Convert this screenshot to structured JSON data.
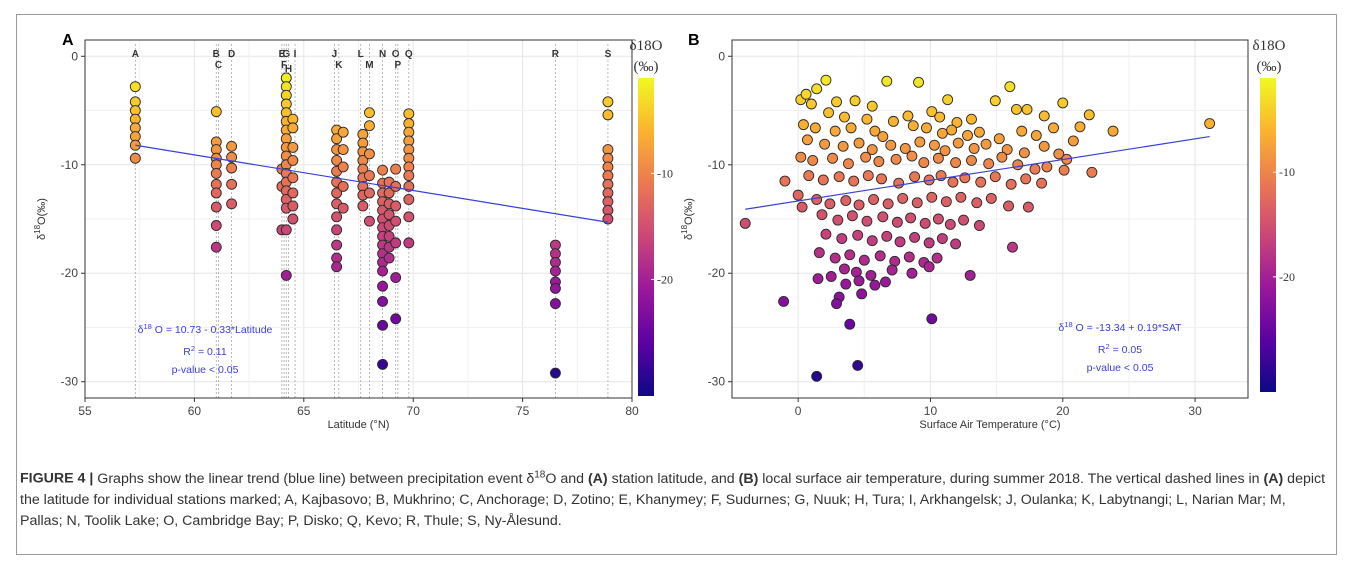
{
  "figure": {
    "caption_label": "FIGURE 4 |",
    "caption_parts": [
      {
        "t": "Graphs show the linear trend (blue line) between precipitation event δ",
        "b": false
      },
      {
        "t": "18",
        "b": false,
        "sup": true
      },
      {
        "t": "O and ",
        "b": false
      },
      {
        "t": "(A)",
        "b": true
      },
      {
        "t": " station latitude, and ",
        "b": false
      },
      {
        "t": "(B)",
        "b": true
      },
      {
        "t": " local surface air temperature, during summer 2018. The vertical dashed lines in ",
        "b": false
      },
      {
        "t": "(A)",
        "b": true
      },
      {
        "t": " depict the latitude for individual stations marked; A, Kajbasovo; B, Mukhrino; C, Anchorage; D, Zotino; E, Khanymey; F, Sudurnes; G, Nuuk; H, Tura; I, Arkhangelsk; J, Oulanka; K, Labytnangi; L, Narian Mar; M, Pallas; N, Toolik Lake; O, Cambridge Bay; P, Disko; Q, Kevo; R, Thule; S, Ny-Ålesund.",
        "b": false
      }
    ]
  },
  "colors": {
    "trend": "#3a3fd6",
    "grid": "#e6e6e6",
    "panel_border": "#333333",
    "colormap": [
      "#0d0887",
      "#5b02a3",
      "#9a179b",
      "#cb4678",
      "#eb7852",
      "#fbb32f",
      "#f0f921"
    ]
  },
  "chart_data": [
    {
      "panel": "A",
      "type": "scatter",
      "xlabel": "Latitude (°N)",
      "ylabel_main": "δ",
      "ylabel_sup": "18",
      "ylabel_rest": "O(‰)",
      "xlim": [
        55,
        80
      ],
      "ylim": [
        -31.5,
        1.5
      ],
      "xticks": [
        55,
        60,
        65,
        70,
        75,
        80
      ],
      "yticks": [
        0,
        -10,
        -20,
        -30
      ],
      "colorbar": {
        "title": "δ18O",
        "unit": "(‰)",
        "range": [
          -31,
          -1
        ],
        "ticks": [
          -10,
          -20
        ]
      },
      "stations": [
        {
          "name": "A",
          "lat": 57.3,
          "row": 1
        },
        {
          "name": "B",
          "lat": 61.0,
          "row": 1
        },
        {
          "name": "C",
          "lat": 61.1,
          "row": 2
        },
        {
          "name": "D",
          "lat": 61.7,
          "row": 1
        },
        {
          "name": "E",
          "lat": 64.0,
          "row": 1
        },
        {
          "name": "F",
          "lat": 64.1,
          "row": 2
        },
        {
          "name": "G",
          "lat": 64.2,
          "row": 1
        },
        {
          "name": "H",
          "lat": 64.3,
          "row": 2.5
        },
        {
          "name": "I",
          "lat": 64.6,
          "row": 1
        },
        {
          "name": "J",
          "lat": 66.4,
          "row": 1
        },
        {
          "name": "K",
          "lat": 66.6,
          "row": 2
        },
        {
          "name": "L",
          "lat": 67.6,
          "row": 1
        },
        {
          "name": "M",
          "lat": 68.0,
          "row": 2
        },
        {
          "name": "N",
          "lat": 68.6,
          "row": 1
        },
        {
          "name": "O",
          "lat": 69.2,
          "row": 1
        },
        {
          "name": "P",
          "lat": 69.3,
          "row": 2
        },
        {
          "name": "Q",
          "lat": 69.8,
          "row": 1
        },
        {
          "name": "R",
          "lat": 76.5,
          "row": 1
        },
        {
          "name": "S",
          "lat": 78.9,
          "row": 1
        }
      ],
      "groups": [
        {
          "x": 57.3,
          "y": [
            -2.8,
            -4.2,
            -5.0,
            -5.8,
            -6.6,
            -7.4,
            -8.2,
            -9.4
          ]
        },
        {
          "x": 61.0,
          "y": [
            -5.1,
            -7.9,
            -8.6,
            -9.4,
            -10.0,
            -10.8,
            -11.8,
            -12.6,
            -13.9,
            -15.6,
            -17.6
          ]
        },
        {
          "x": 61.7,
          "y": [
            -8.3,
            -9.3,
            -10.3,
            -11.8,
            -13.6
          ]
        },
        {
          "x": 64.0,
          "y": [
            -10.4,
            -12.0,
            -16.0
          ]
        },
        {
          "x": 64.2,
          "y": [
            -2.0,
            -2.8,
            -3.6,
            -4.4,
            -5.2,
            -6.0,
            -6.8,
            -7.6,
            -8.4,
            -9.2,
            -10.0,
            -10.8,
            -11.6,
            -12.4,
            -13.2,
            -14.0,
            -16.0,
            -20.2
          ]
        },
        {
          "x": 64.5,
          "y": [
            -5.8,
            -6.6,
            -8.4,
            -9.6,
            -11.2,
            -12.6,
            -13.8,
            -15.0
          ]
        },
        {
          "x": 66.5,
          "y": [
            -6.8,
            -7.6,
            -8.6,
            -9.6,
            -10.6,
            -11.6,
            -12.6,
            -13.6,
            -14.8,
            -16.0,
            -17.4,
            -18.6,
            -19.4
          ]
        },
        {
          "x": 66.8,
          "y": [
            -7.0,
            -8.6,
            -10.2,
            -12.0,
            -14.0
          ]
        },
        {
          "x": 67.7,
          "y": [
            -7.2,
            -8.0,
            -8.8,
            -9.6,
            -10.4,
            -11.2,
            -12.0,
            -12.8,
            -13.8
          ]
        },
        {
          "x": 68.0,
          "y": [
            -5.2,
            -6.4,
            -9.0,
            -11.0,
            -12.6,
            -15.2
          ]
        },
        {
          "x": 68.6,
          "y": [
            -10.5,
            -11.7,
            -12.6,
            -13.4,
            -14.2,
            -15.0,
            -15.8,
            -16.6,
            -17.4,
            -18.2,
            -19.0,
            -19.8,
            -21.2,
            -22.6,
            -24.8,
            -28.4
          ]
        },
        {
          "x": 68.9,
          "y": [
            -11.6,
            -12.6,
            -13.6,
            -14.6,
            -15.6,
            -16.6,
            -17.6,
            -18.6
          ]
        },
        {
          "x": 69.2,
          "y": [
            -10.4,
            -12.0,
            -13.8,
            -15.2,
            -17.2,
            -20.4,
            -24.2
          ]
        },
        {
          "x": 69.8,
          "y": [
            -5.3,
            -6.2,
            -7.0,
            -7.8,
            -8.6,
            -9.4,
            -10.2,
            -11.0,
            -12.0,
            -13.2,
            -14.8,
            -17.2
          ]
        },
        {
          "x": 76.5,
          "y": [
            -17.4,
            -18.2,
            -19.0,
            -19.8,
            -20.8,
            -21.4,
            -22.8,
            -29.2
          ]
        },
        {
          "x": 78.9,
          "y": [
            -4.2,
            -5.4,
            -8.6,
            -9.4,
            -10.2,
            -11.0,
            -11.8,
            -12.6,
            -13.4,
            -14.2,
            -15.0
          ]
        }
      ],
      "trend": {
        "x": [
          57.3,
          78.9
        ],
        "y": [
          -8.2,
          -15.3
        ]
      },
      "annotations": {
        "eq_pre": "δ",
        "eq_sup": "18",
        "eq_post": " O = 10.73 - 0.33*Latitude",
        "r2_main": "R",
        "r2_sup": "2",
        "r2_post": " = 0.11",
        "pval": "p-value < 0.05"
      }
    },
    {
      "panel": "B",
      "type": "scatter",
      "xlabel": "Surface Air Temperature (°C)",
      "ylabel_main": "δ",
      "ylabel_sup": "18",
      "ylabel_rest": "O(‰)",
      "xlim": [
        -5,
        34
      ],
      "ylim": [
        -31.5,
        1.5
      ],
      "xticks": [
        0,
        10,
        20,
        30
      ],
      "yticks": [
        0,
        -10,
        -20,
        -30
      ],
      "colorbar": {
        "title": "δ18O",
        "unit": "(‰)",
        "range": [
          -31,
          -1
        ],
        "ticks": [
          -10,
          -20
        ]
      },
      "points": [
        [
          1.4,
          -3.0
        ],
        [
          2.1,
          -2.2
        ],
        [
          6.7,
          -2.3
        ],
        [
          9.1,
          -2.4
        ],
        [
          16.0,
          -2.8
        ],
        [
          0.2,
          -4.0
        ],
        [
          0.6,
          -3.5
        ],
        [
          1.0,
          -4.4
        ],
        [
          2.9,
          -4.2
        ],
        [
          4.3,
          -4.1
        ],
        [
          5.6,
          -4.6
        ],
        [
          11.3,
          -4.0
        ],
        [
          14.9,
          -4.1
        ],
        [
          17.3,
          -4.9
        ],
        [
          20.0,
          -4.3
        ],
        [
          22.0,
          -5.4
        ],
        [
          31.1,
          -6.2
        ],
        [
          2.3,
          -5.2
        ],
        [
          3.5,
          -5.6
        ],
        [
          5.2,
          -5.8
        ],
        [
          7.2,
          -6.0
        ],
        [
          8.3,
          -5.5
        ],
        [
          10.1,
          -5.1
        ],
        [
          10.7,
          -5.6
        ],
        [
          12.0,
          -6.1
        ],
        [
          13.1,
          -5.8
        ],
        [
          16.5,
          -4.9
        ],
        [
          18.6,
          -5.5
        ],
        [
          21.3,
          -6.5
        ],
        [
          23.8,
          -6.9
        ],
        [
          0.4,
          -6.3
        ],
        [
          1.3,
          -6.6
        ],
        [
          2.8,
          -6.9
        ],
        [
          4.0,
          -6.6
        ],
        [
          5.8,
          -6.9
        ],
        [
          6.4,
          -7.4
        ],
        [
          8.7,
          -6.4
        ],
        [
          9.7,
          -6.6
        ],
        [
          10.9,
          -7.1
        ],
        [
          11.6,
          -6.8
        ],
        [
          12.8,
          -7.3
        ],
        [
          13.7,
          -7.0
        ],
        [
          15.2,
          -7.6
        ],
        [
          16.9,
          -6.9
        ],
        [
          18.0,
          -7.3
        ],
        [
          19.3,
          -6.6
        ],
        [
          20.8,
          -7.8
        ],
        [
          0.7,
          -7.7
        ],
        [
          2.0,
          -8.1
        ],
        [
          3.4,
          -8.3
        ],
        [
          4.6,
          -8.0
        ],
        [
          5.6,
          -8.6
        ],
        [
          7.0,
          -8.2
        ],
        [
          8.1,
          -8.5
        ],
        [
          9.2,
          -7.9
        ],
        [
          10.3,
          -8.2
        ],
        [
          11.1,
          -8.7
        ],
        [
          12.1,
          -8.0
        ],
        [
          13.3,
          -8.5
        ],
        [
          14.2,
          -8.1
        ],
        [
          15.8,
          -8.6
        ],
        [
          17.1,
          -8.9
        ],
        [
          18.6,
          -8.3
        ],
        [
          19.7,
          -9.0
        ],
        [
          20.3,
          -9.5
        ],
        [
          0.2,
          -9.3
        ],
        [
          1.1,
          -9.6
        ],
        [
          2.6,
          -9.4
        ],
        [
          3.8,
          -9.9
        ],
        [
          5.1,
          -9.3
        ],
        [
          6.1,
          -9.7
        ],
        [
          7.4,
          -9.5
        ],
        [
          8.6,
          -9.2
        ],
        [
          9.5,
          -9.8
        ],
        [
          10.6,
          -9.4
        ],
        [
          11.9,
          -9.8
        ],
        [
          13.1,
          -9.6
        ],
        [
          14.4,
          -9.9
        ],
        [
          15.4,
          -9.3
        ],
        [
          16.6,
          -10.0
        ],
        [
          17.9,
          -10.4
        ],
        [
          18.8,
          -10.2
        ],
        [
          20.1,
          -10.5
        ],
        [
          22.2,
          -10.7
        ],
        [
          -1.0,
          -11.5
        ],
        [
          0.0,
          -12.8
        ],
        [
          0.8,
          -11.0
        ],
        [
          1.9,
          -11.4
        ],
        [
          3.1,
          -11.1
        ],
        [
          4.2,
          -11.5
        ],
        [
          5.3,
          -11.0
        ],
        [
          6.3,
          -11.3
        ],
        [
          7.6,
          -11.7
        ],
        [
          8.8,
          -11.1
        ],
        [
          9.9,
          -11.4
        ],
        [
          10.8,
          -11.0
        ],
        [
          11.7,
          -11.6
        ],
        [
          12.6,
          -11.2
        ],
        [
          13.8,
          -11.6
        ],
        [
          14.9,
          -11.1
        ],
        [
          16.1,
          -11.8
        ],
        [
          17.2,
          -11.3
        ],
        [
          18.4,
          -11.7
        ],
        [
          0.3,
          -13.9
        ],
        [
          1.4,
          -13.2
        ],
        [
          2.4,
          -13.6
        ],
        [
          3.6,
          -13.3
        ],
        [
          4.6,
          -13.7
        ],
        [
          5.7,
          -13.2
        ],
        [
          6.8,
          -13.6
        ],
        [
          7.9,
          -13.1
        ],
        [
          9.0,
          -13.5
        ],
        [
          10.1,
          -13.0
        ],
        [
          11.2,
          -13.4
        ],
        [
          12.3,
          -13.0
        ],
        [
          13.5,
          -13.5
        ],
        [
          14.6,
          -13.1
        ],
        [
          15.9,
          -13.8
        ],
        [
          17.4,
          -13.9
        ],
        [
          -4.0,
          -15.4
        ],
        [
          1.8,
          -14.6
        ],
        [
          3.0,
          -15.1
        ],
        [
          4.1,
          -14.7
        ],
        [
          5.2,
          -15.2
        ],
        [
          6.4,
          -14.8
        ],
        [
          7.5,
          -15.3
        ],
        [
          8.5,
          -14.9
        ],
        [
          9.6,
          -15.4
        ],
        [
          10.6,
          -15.0
        ],
        [
          11.5,
          -15.5
        ],
        [
          12.5,
          -15.1
        ],
        [
          13.7,
          -15.6
        ],
        [
          2.1,
          -16.4
        ],
        [
          3.3,
          -16.8
        ],
        [
          4.5,
          -16.5
        ],
        [
          5.6,
          -17.0
        ],
        [
          6.7,
          -16.6
        ],
        [
          7.7,
          -17.1
        ],
        [
          8.8,
          -16.7
        ],
        [
          9.9,
          -17.2
        ],
        [
          10.9,
          -16.8
        ],
        [
          11.9,
          -17.3
        ],
        [
          16.2,
          -17.6
        ],
        [
          1.6,
          -18.1
        ],
        [
          2.8,
          -18.6
        ],
        [
          3.9,
          -18.3
        ],
        [
          5.0,
          -18.8
        ],
        [
          6.2,
          -18.4
        ],
        [
          7.3,
          -18.9
        ],
        [
          8.4,
          -18.5
        ],
        [
          9.5,
          -19.0
        ],
        [
          10.5,
          -18.6
        ],
        [
          3.5,
          -19.6
        ],
        [
          4.4,
          -19.9
        ],
        [
          5.5,
          -20.2
        ],
        [
          7.1,
          -19.7
        ],
        [
          8.6,
          -20.0
        ],
        [
          9.9,
          -19.4
        ],
        [
          13.0,
          -20.2
        ],
        [
          1.5,
          -20.5
        ],
        [
          2.5,
          -20.3
        ],
        [
          3.6,
          -21.0
        ],
        [
          4.6,
          -20.7
        ],
        [
          5.8,
          -21.1
        ],
        [
          6.6,
          -20.8
        ],
        [
          3.1,
          -22.2
        ],
        [
          2.9,
          -22.8
        ],
        [
          -1.1,
          -22.6
        ],
        [
          4.8,
          -21.9
        ],
        [
          3.9,
          -24.7
        ],
        [
          10.1,
          -24.2
        ],
        [
          1.4,
          -29.5
        ],
        [
          4.5,
          -28.5
        ]
      ],
      "trend": {
        "x": [
          -4.0,
          31.1
        ],
        "y": [
          -14.1,
          -7.4
        ]
      },
      "annotations": {
        "eq_pre": "δ",
        "eq_sup": "18",
        "eq_post": " O = -13.34 + 0.19*SAT",
        "r2_main": "R",
        "r2_sup": "2",
        "r2_post": " = 0.05",
        "pval": "p-value < 0.05"
      }
    }
  ]
}
